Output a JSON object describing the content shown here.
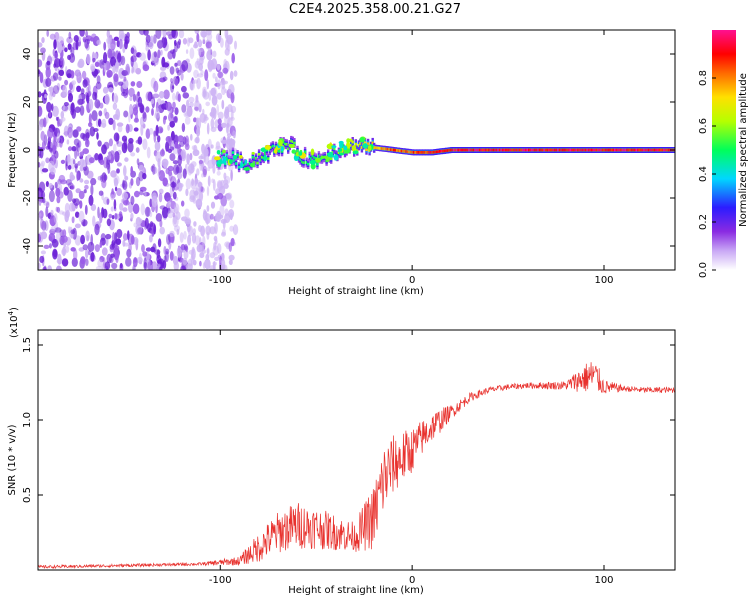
{
  "title": "C2E4.2025.358.00.21.G27",
  "colors": {
    "trace": "#e8322e",
    "noise_purple": "#7a2de0",
    "frame": "#000000"
  },
  "chart_data": [
    {
      "type": "heatmap",
      "name": "spectrogram",
      "xlabel": "Height of straight line (km)",
      "ylabel": "Frequency (Hz)",
      "xlim": [
        -195,
        137
      ],
      "ylim": [
        -50,
        50
      ],
      "xticks": [
        -100,
        0,
        100
      ],
      "yticks": [
        -40,
        -20,
        0,
        20,
        40
      ],
      "noise_region": {
        "x_range": [
          -195,
          -92
        ],
        "freq_range": [
          -50,
          50
        ]
      },
      "signal_track": {
        "x": [
          -102,
          -95,
          -88,
          -80,
          -72,
          -65,
          -58,
          -50,
          -42,
          -35,
          -28,
          -20,
          -10,
          0,
          10,
          20,
          40,
          60,
          80,
          100,
          137
        ],
        "frequency": [
          -4,
          -3,
          -6,
          -3,
          0,
          3,
          -3,
          -4,
          -1,
          1,
          2,
          1,
          0,
          -1,
          -1,
          0,
          0,
          0,
          0,
          0,
          0
        ],
        "normalized_amplitude": [
          0.45,
          0.5,
          0.55,
          0.6,
          0.55,
          0.6,
          0.55,
          0.5,
          0.6,
          0.65,
          0.7,
          0.8,
          0.9,
          0.9,
          0.95,
          1.0,
          1.0,
          1.0,
          1.0,
          1.0,
          1.0
        ]
      },
      "colorbar": {
        "label": "Normalized spectral amplitude",
        "range": [
          0,
          1
        ],
        "ticks": [
          0.0,
          0.2,
          0.4,
          0.6,
          0.8
        ],
        "tick_labels": [
          "0.0",
          "0.2",
          "0.4",
          "0.6",
          "0.8"
        ]
      }
    },
    {
      "type": "line",
      "name": "snr",
      "xlabel": "Height of straight line (km)",
      "ylabel": "SNR (10 * v/v)",
      "y_multiplier_label": "(x10",
      "y_multiplier_exp": "4",
      "xlim": [
        -195,
        137
      ],
      "ylim": [
        0,
        1.6
      ],
      "xticks": [
        -100,
        0,
        100
      ],
      "yticks": [
        0.5,
        1.0,
        1.5
      ],
      "ytick_labels": [
        "0.5",
        "1.0",
        "1.5"
      ],
      "series": [
        {
          "name": "SNR",
          "x": [
            -195,
            -150,
            -110,
            -90,
            -80,
            -70,
            -60,
            -50,
            -40,
            -30,
            -20,
            -15,
            -10,
            -5,
            0,
            5,
            10,
            15,
            20,
            30,
            40,
            50,
            60,
            80,
            90,
            95,
            100,
            110,
            120,
            137
          ],
          "y": [
            0.02,
            0.03,
            0.04,
            0.06,
            0.15,
            0.25,
            0.3,
            0.28,
            0.25,
            0.22,
            0.35,
            0.6,
            0.7,
            0.75,
            0.8,
            0.88,
            0.95,
            1.0,
            1.05,
            1.15,
            1.2,
            1.22,
            1.23,
            1.23,
            1.28,
            1.3,
            1.22,
            1.21,
            1.2,
            1.2
          ],
          "noise_amplitude": [
            0.01,
            0.01,
            0.01,
            0.03,
            0.1,
            0.14,
            0.16,
            0.14,
            0.12,
            0.1,
            0.22,
            0.25,
            0.2,
            0.18,
            0.15,
            0.12,
            0.1,
            0.08,
            0.05,
            0.03,
            0.02,
            0.02,
            0.02,
            0.03,
            0.1,
            0.12,
            0.05,
            0.02,
            0.02,
            0.02
          ]
        }
      ]
    }
  ]
}
